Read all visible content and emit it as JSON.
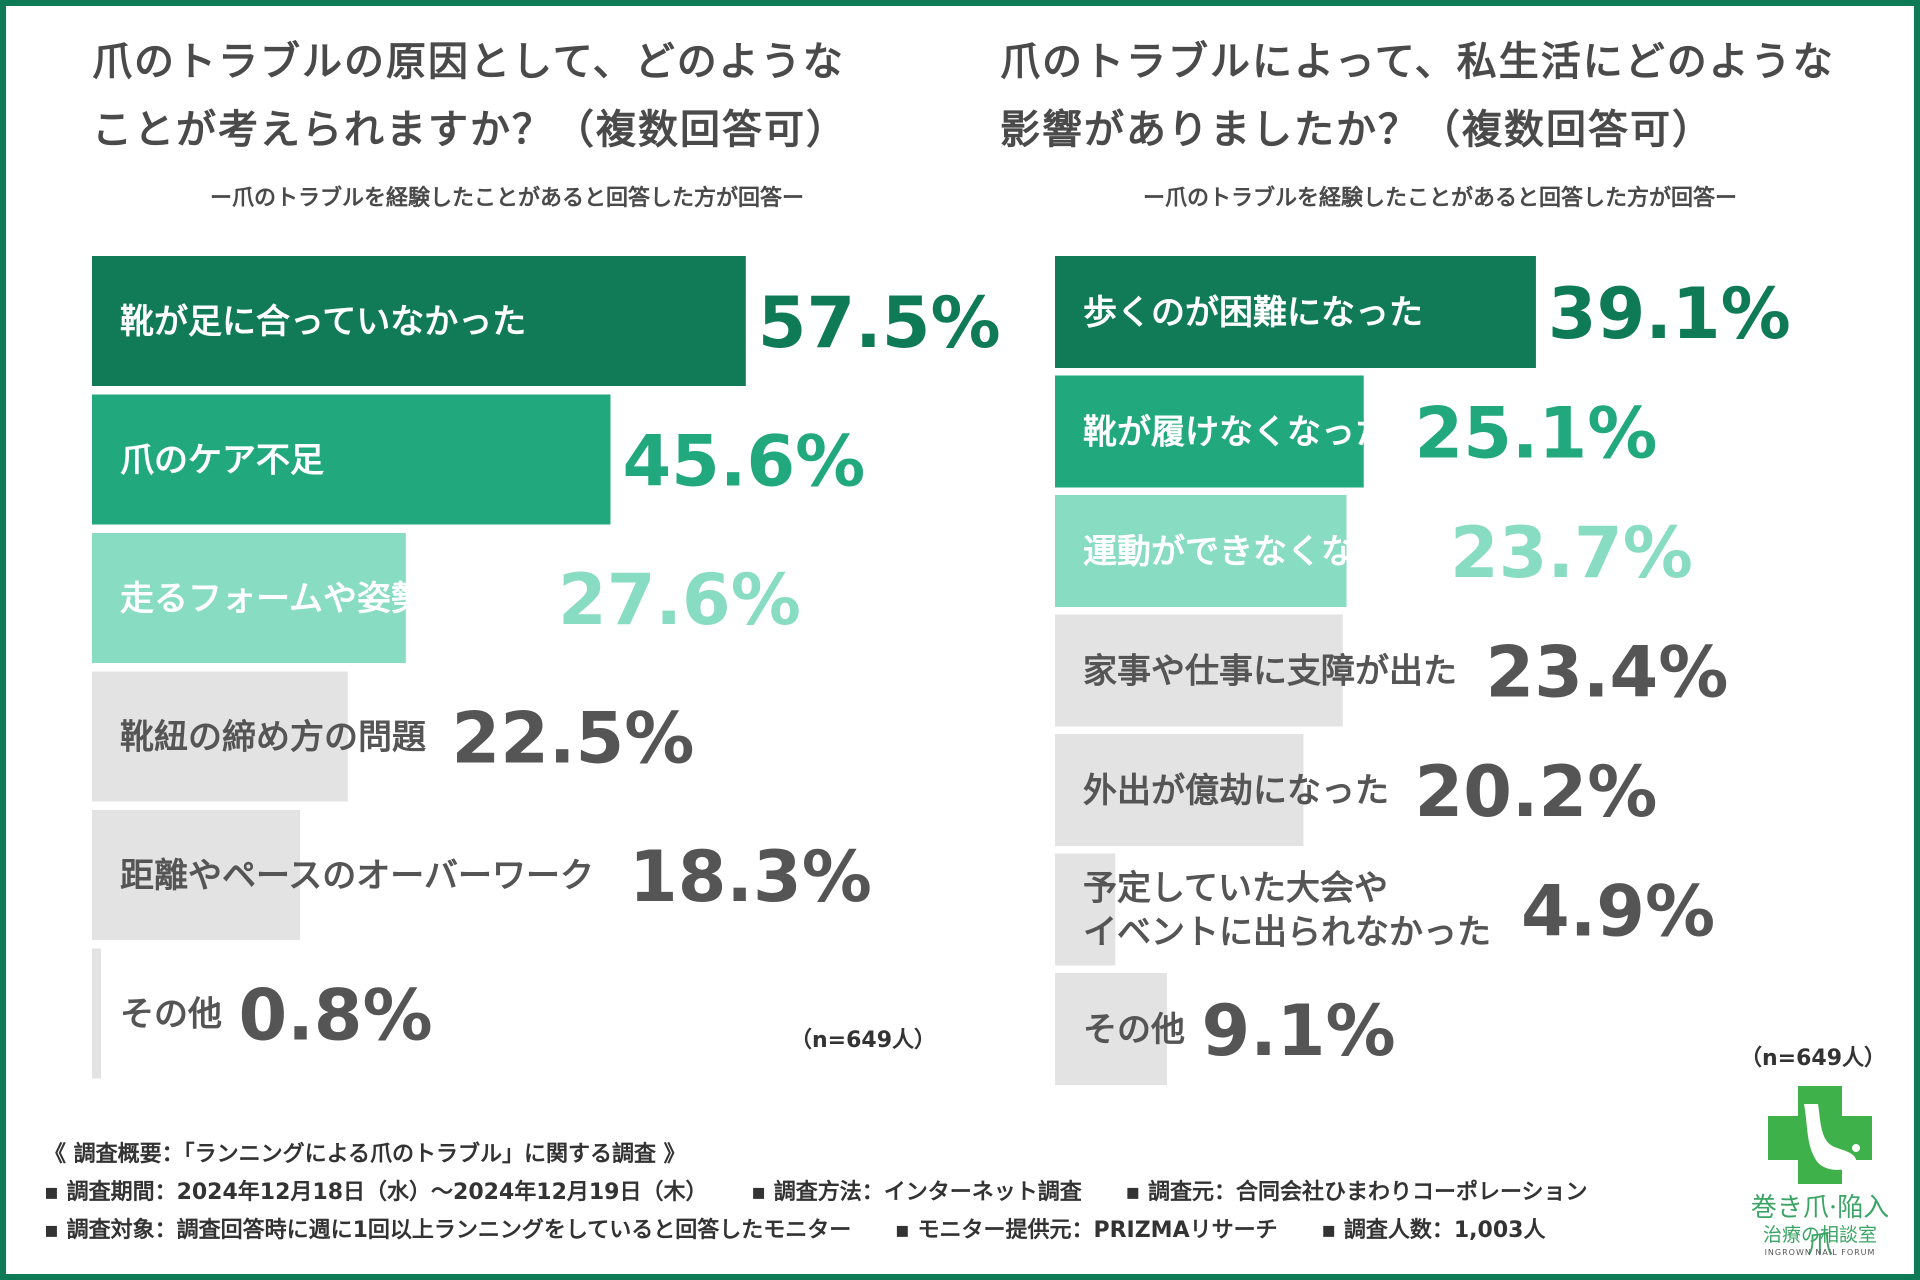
{
  "colors": {
    "frame": "#0f7a56",
    "dark": "#117a57",
    "mid": "#22a87d",
    "light": "#88dcc2",
    "gray": "#e3e3e3",
    "grayText": "#555555"
  },
  "left": {
    "title_line1": "爪のトラブルの原因として、どのような",
    "title_line2": "ことが考えられますか？（複数回答可）",
    "subtitle": "ー爪のトラブルを経験したことがあると回答した方が回答ー",
    "n_label": "（n=649人）"
  },
  "right": {
    "title_line1": "爪のトラブルによって、私生活にどのような",
    "title_line2": "影響がありましたか？（複数回答可）",
    "subtitle": "ー爪のトラブルを経験したことがあると回答した方が回答ー",
    "n_label": "（n=649人）"
  },
  "chart_data": [
    {
      "type": "bar",
      "orientation": "horizontal",
      "title": "爪のトラブルの原因として、どのようなことが考えられますか？（複数回答可）",
      "unit": "%",
      "categories": [
        "靴が足に合っていなかった",
        "爪のケア不足",
        "走るフォームや姿勢の問題",
        "靴紐の締め方の問題",
        "距離やペースのオーバーワーク",
        "その他"
      ],
      "values": [
        57.5,
        45.6,
        27.6,
        22.5,
        18.3,
        0.8
      ],
      "labels": [
        "57.5%",
        "45.6%",
        "27.6%",
        "22.5%",
        "18.3%",
        "0.8%"
      ]
    },
    {
      "type": "bar",
      "orientation": "horizontal",
      "title": "爪のトラブルによって、私生活にどのような影響がありましたか？（複数回答可）",
      "unit": "%",
      "categories": [
        "歩くのが困難になった",
        "靴が履けなくなった",
        "運動ができなくなった",
        "家事や仕事に支障が出た",
        "外出が億劫になった",
        "予定していた大会や\nイベントに出られなかった",
        "その他"
      ],
      "values": [
        39.1,
        25.1,
        23.7,
        23.4,
        20.2,
        4.9,
        9.1
      ],
      "labels": [
        "39.1%",
        "25.1%",
        "23.7%",
        "23.4%",
        "20.2%",
        "4.9%",
        "9.1%"
      ]
    }
  ],
  "footer": {
    "heading": "《 調査概要：「ランニングによる爪のトラブル」に関する調査 》",
    "period": "▪ 調査期間：2024年12月18日（水）～2024年12月19日（木）",
    "method": "▪ 調査方法：インターネット調査",
    "source": "▪ 調査元：合同会社ひまわりコーポレーション",
    "target": "▪ 調査対象：調査回答時に週に1回以上ランニングをしていると回答したモニター",
    "provider": "▪ モニター提供元：PRIZMAリサーチ",
    "count": "▪ 調査人数：1,003人"
  },
  "logo": {
    "title": "巻き爪·陥入爪",
    "subtitle": "治療の相談室",
    "english": "INGROWN NAIL FORUM",
    "icon": "foot-cross-icon"
  }
}
